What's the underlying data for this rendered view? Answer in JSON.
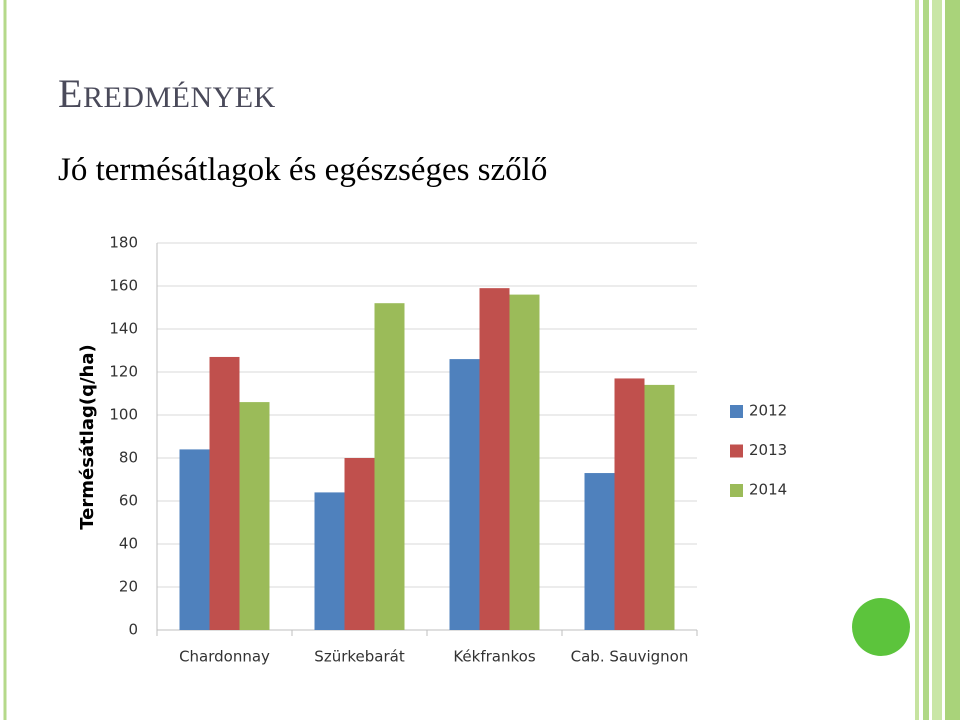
{
  "header": {
    "title": "EREDMÉNYEK",
    "subtitle": "Jó termésátlagok és egészséges szőlő"
  },
  "chart_data": {
    "type": "bar",
    "ylabel": "Termésátlag(q/ha)",
    "categories": [
      "Chardonnay",
      "Szürkebarát",
      "Kékfrankos",
      "Cab. Sauvignon"
    ],
    "series": [
      {
        "name": "2012",
        "color": "#4f81bd",
        "values": [
          84,
          64,
          126,
          73
        ]
      },
      {
        "name": "2013",
        "color": "#c0504d",
        "values": [
          127,
          80,
          159,
          117
        ]
      },
      {
        "name": "2014",
        "color": "#9bbb59",
        "values": [
          106,
          152,
          156,
          114
        ]
      }
    ],
    "ylim": [
      0,
      180
    ],
    "yticks": [
      0,
      20,
      40,
      60,
      80,
      100,
      120,
      140,
      160,
      180
    ],
    "grid": true,
    "legend": "right"
  }
}
